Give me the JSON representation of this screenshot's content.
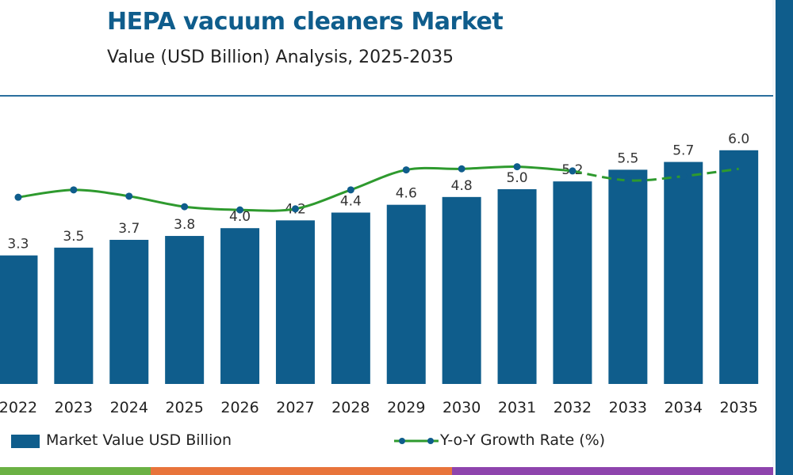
{
  "title": "HEPA vacuum cleaners Market",
  "subtitle": "Value (USD Billion) Analysis, 2025-2035",
  "colors": {
    "bar": "#0f5d8c",
    "line": "#2e9a2e",
    "title": "#0f5d8c",
    "rule": "#2a6f9e"
  },
  "chart_data": {
    "type": "bar",
    "categories": [
      "2022",
      "2023",
      "2024",
      "2025",
      "2026",
      "2027",
      "2028",
      "2029",
      "2030",
      "2031",
      "2032",
      "2033",
      "2034",
      "2035"
    ],
    "series": [
      {
        "name": "Market Value USD Billion",
        "type": "bar",
        "values": [
          3.3,
          3.5,
          3.7,
          3.8,
          4.0,
          4.2,
          4.4,
          4.6,
          4.8,
          5.0,
          5.2,
          5.5,
          5.7,
          6.0
        ],
        "labels": [
          "3.3",
          "3.5",
          "3.7",
          "3.8",
          "4.0",
          "4.2",
          "4.4",
          "4.6",
          "4.8",
          "5.0",
          "5.2",
          "5.5",
          "5.7",
          "6.0"
        ]
      },
      {
        "name": "Y-o-Y Growth Rate (%)",
        "type": "line",
        "values": [
          4.8,
          5.5,
          4.9,
          3.9,
          3.6,
          3.7,
          5.5,
          7.4,
          7.5,
          7.7,
          7.3,
          6.4,
          6.8,
          7.5
        ],
        "style": "solid with dashed forecast segment"
      }
    ],
    "legend": "bottom",
    "grid": false
  },
  "legend": {
    "bar_label": "Market Value USD Billion",
    "line_label": "Y-o-Y Growth Rate (%)"
  }
}
